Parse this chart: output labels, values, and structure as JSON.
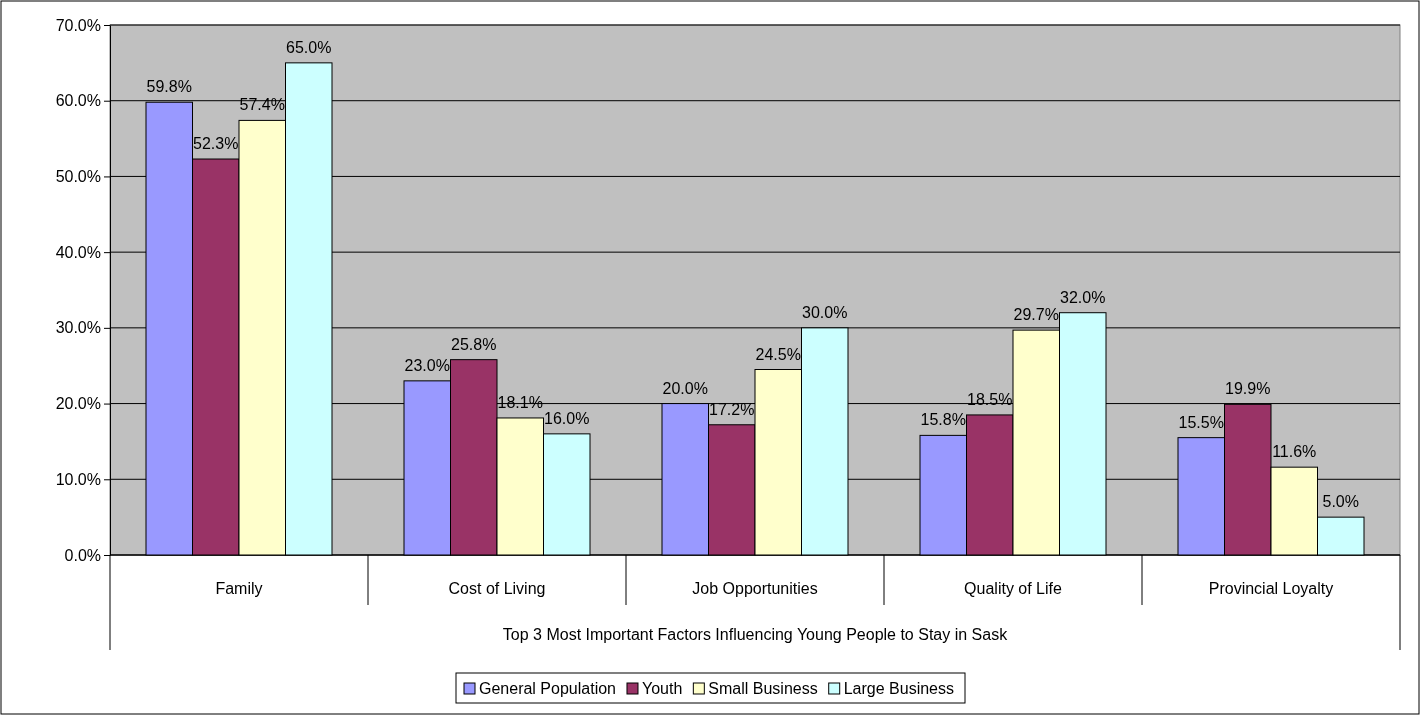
{
  "chart_data": {
    "type": "bar",
    "xlabel": "Top 3 Most Important Factors Influencing Young People to Stay in Sask",
    "categories": [
      "Family",
      "Cost of Living",
      "Job Opportunities",
      "Quality of Life",
      "Provincial Loyalty"
    ],
    "series": [
      {
        "name": "General Population",
        "color": "#9999ff",
        "values": [
          59.8,
          23.0,
          20.0,
          15.8,
          15.5
        ],
        "value_labels": [
          "59.8%",
          "23.0%",
          "20.0%",
          "15.8%",
          "15.5%"
        ]
      },
      {
        "name": "Youth",
        "color": "#993366",
        "values": [
          52.3,
          25.8,
          17.2,
          18.5,
          19.9
        ],
        "value_labels": [
          "52.3%",
          "25.8%",
          "17.2%",
          "18.5%",
          "19.9%"
        ]
      },
      {
        "name": "Small Business",
        "color": "#ffffcc",
        "values": [
          57.4,
          18.1,
          24.5,
          29.7,
          11.6
        ],
        "value_labels": [
          "57.4%",
          "18.1%",
          "24.5%",
          "29.7%",
          "11.6%"
        ]
      },
      {
        "name": "Large Business",
        "color": "#ccffff",
        "values": [
          65.0,
          16.0,
          30.0,
          32.0,
          5.0
        ],
        "value_labels": [
          "65.0%",
          "16.0%",
          "30.0%",
          "32.0%",
          "5.0%"
        ]
      }
    ],
    "ylim": [
      0,
      70
    ],
    "yticks": [
      {
        "value": 0,
        "label": "0.0%"
      },
      {
        "value": 10,
        "label": "10.0%"
      },
      {
        "value": 20,
        "label": "20.0%"
      },
      {
        "value": 30,
        "label": "30.0%"
      },
      {
        "value": 40,
        "label": "40.0%"
      },
      {
        "value": 50,
        "label": "50.0%"
      },
      {
        "value": 60,
        "label": "60.0%"
      },
      {
        "value": 70,
        "label": "70.0%"
      }
    ],
    "grid": "y",
    "legend": "bottom"
  }
}
